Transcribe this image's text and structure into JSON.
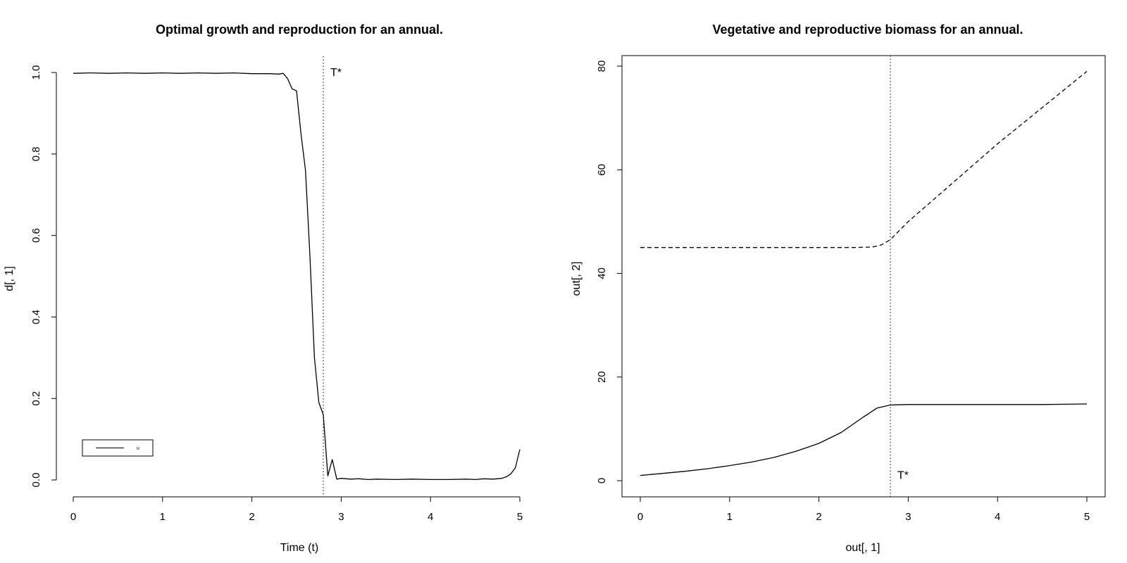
{
  "chart_data": [
    {
      "type": "line",
      "title": "Optimal growth and reproduction for an annual.",
      "xlabel": "Time (t)",
      "ylabel": "d[, 1]",
      "xlim": [
        0,
        5
      ],
      "ylim": [
        0,
        1
      ],
      "xticks": [
        "0",
        "1",
        "2",
        "3",
        "4",
        "5"
      ],
      "yticks": [
        "0.0",
        "0.2",
        "0.4",
        "0.6",
        "0.8",
        "1.0"
      ],
      "grid": false,
      "box": false,
      "vline": {
        "x": 2.8,
        "label": "T*",
        "label_y": 1.0
      },
      "legend": {
        "placement": "bottom-left",
        "entries": [
          "u"
        ]
      },
      "series": [
        {
          "name": "u",
          "style": "solid",
          "x": [
            0,
            0.2,
            0.4,
            0.6,
            0.8,
            1.0,
            1.2,
            1.4,
            1.6,
            1.8,
            2.0,
            2.2,
            2.3,
            2.35,
            2.4,
            2.45,
            2.5,
            2.55,
            2.6,
            2.65,
            2.7,
            2.75,
            2.8,
            2.85,
            2.9,
            2.95,
            3.0,
            3.1,
            3.2,
            3.3,
            3.4,
            3.6,
            3.8,
            4.0,
            4.2,
            4.4,
            4.5,
            4.6,
            4.7,
            4.8,
            4.85,
            4.9,
            4.95,
            5.0
          ],
          "y": [
            0.998,
            0.999,
            0.998,
            0.999,
            0.998,
            0.999,
            0.998,
            0.999,
            0.998,
            0.999,
            0.997,
            0.997,
            0.996,
            0.998,
            0.985,
            0.96,
            0.955,
            0.85,
            0.76,
            0.55,
            0.3,
            0.19,
            0.16,
            0.01,
            0.05,
            0.002,
            0.004,
            0.002,
            0.003,
            0.001,
            0.002,
            0.001,
            0.002,
            0.001,
            0.001,
            0.002,
            0.001,
            0.003,
            0.002,
            0.004,
            0.008,
            0.015,
            0.03,
            0.075
          ]
        }
      ]
    },
    {
      "type": "line",
      "title": "Vegetative and reproductive biomass for an annual.",
      "xlabel": "out[, 1]",
      "ylabel": "out[, 2]",
      "xlim": [
        0,
        5
      ],
      "ylim": [
        0,
        80
      ],
      "xticks": [
        "0",
        "1",
        "2",
        "3",
        "4",
        "5"
      ],
      "yticks": [
        "0",
        "20",
        "40",
        "60",
        "80"
      ],
      "grid": false,
      "box": true,
      "vline": {
        "x": 2.8,
        "label": "T*",
        "label_y": 1
      },
      "series": [
        {
          "style": "dashed",
          "x": [
            0,
            0.5,
            1.0,
            1.5,
            2.0,
            2.4,
            2.6,
            2.7,
            2.8,
            3.0,
            3.5,
            4.0,
            4.5,
            5.0
          ],
          "y": [
            45,
            45,
            45,
            45,
            45,
            45,
            45.1,
            45.5,
            46.5,
            50,
            57.5,
            65,
            72,
            79
          ]
        },
        {
          "style": "solid",
          "x": [
            0,
            0.25,
            0.5,
            0.75,
            1.0,
            1.25,
            1.5,
            1.75,
            2.0,
            2.25,
            2.5,
            2.65,
            2.8,
            3.0,
            3.5,
            4.0,
            4.5,
            5.0
          ],
          "y": [
            1,
            1.4,
            1.8,
            2.3,
            2.9,
            3.6,
            4.5,
            5.7,
            7.2,
            9.3,
            12.3,
            14.0,
            14.6,
            14.7,
            14.7,
            14.7,
            14.7,
            14.8
          ]
        }
      ]
    }
  ]
}
